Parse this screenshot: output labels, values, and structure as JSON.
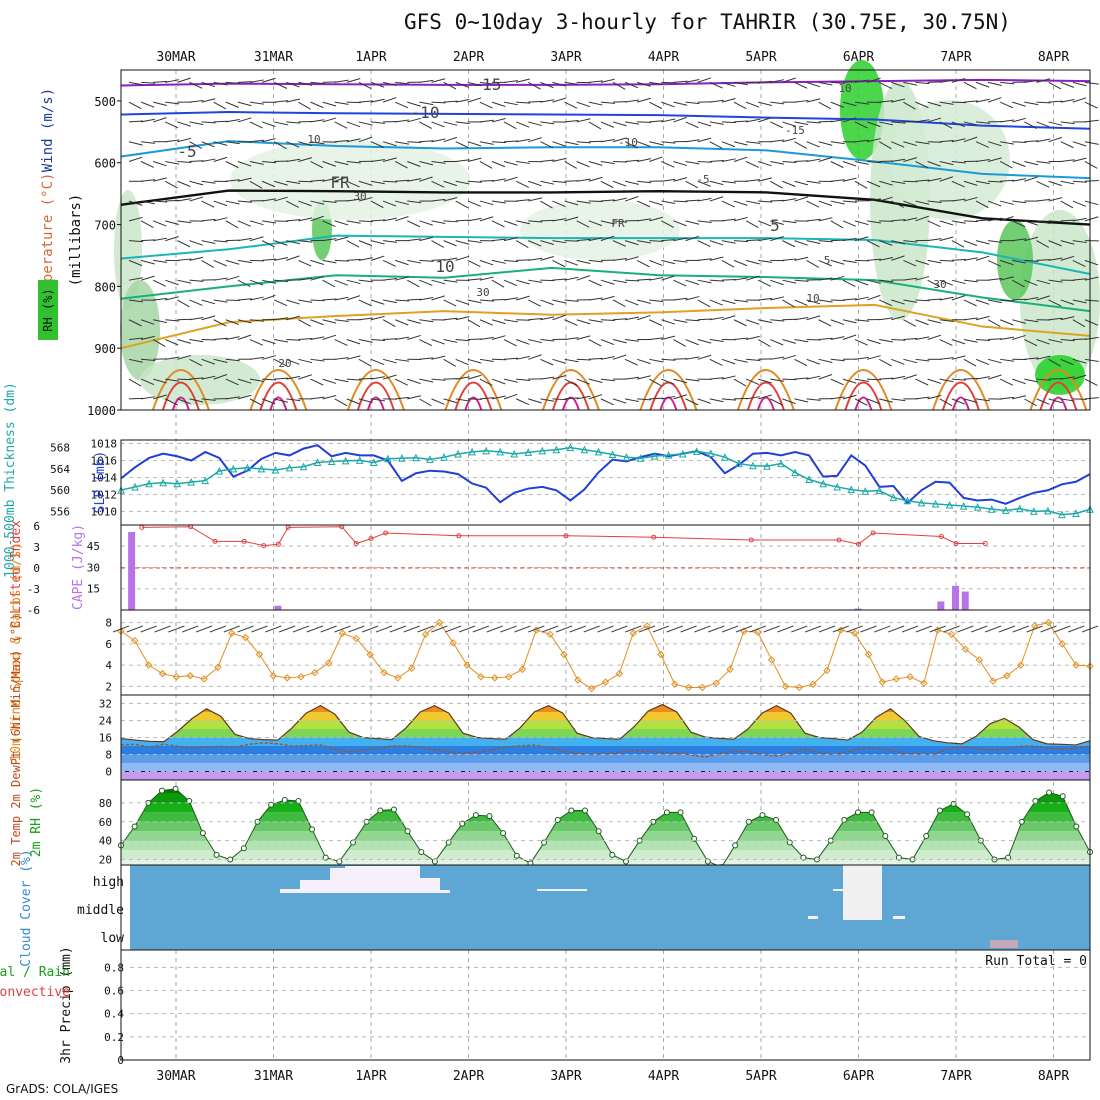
{
  "title": "GFS 0~10day 3-hourly for TAHRIR (30.75E, 30.75N)",
  "credit": "GrADS: COLA/IGES",
  "chart_data": {
    "type": "meteogram",
    "dates": [
      "30MAR",
      "31MAR",
      "1APR",
      "2APR",
      "3APR",
      "4APR",
      "5APR",
      "6APR",
      "7APR",
      "8APR"
    ],
    "panels": {
      "upper_air": {
        "ylabel_parts": [
          "RH (%)",
          "Temperature (°C)",
          "Wind (m/s)",
          "(millibars)"
        ],
        "pressure_levels": [
          500,
          600,
          700,
          800,
          900,
          1000
        ],
        "contour_labels": [
          "-15",
          "-10",
          "-5",
          "FR",
          "5",
          "10",
          "20",
          "10",
          "30",
          "30",
          "10",
          "-15",
          "-10",
          "-5",
          "FR",
          "5",
          "10",
          "30"
        ],
        "isotherms": [
          {
            "label": "-15",
            "color": "#8b1fc0",
            "level_mb": [
              475,
              472,
              473,
              474,
              474,
              473,
              470,
              468,
              466,
              468
            ]
          },
          {
            "label": "-10",
            "color": "#2244dd",
            "level_mb": [
              522,
              518,
              520,
              521,
              522,
              523,
              527,
              530,
              540,
              545
            ]
          },
          {
            "label": "-5",
            "color": "#1a9ad6",
            "level_mb": [
              590,
              565,
              573,
              577,
              575,
              575,
              580,
              598,
              618,
              625
            ]
          },
          {
            "label": "FR",
            "color": "#111111",
            "level_mb": [
              668,
              645,
              646,
              648,
              648,
              646,
              648,
              660,
              690,
              700
            ]
          },
          {
            "label": "5",
            "color": "#1bb5b5",
            "level_mb": [
              755,
              740,
              718,
              720,
              722,
              722,
              722,
              725,
              745,
              780
            ]
          },
          {
            "label": "10",
            "color": "#18b07a",
            "level_mb": [
              820,
              800,
              782,
              786,
              770,
              782,
              785,
              790,
              818,
              840
            ]
          },
          {
            "label": "15",
            "color": "#e0a020",
            "level_mb": [
              900,
              858,
              848,
              840,
              846,
              842,
              835,
              830,
              865,
              880
            ]
          }
        ]
      },
      "slp_thickness": {
        "ylabel_left": "1000-500mb Thickness (dm)",
        "ylabel_right": "SLP (mb)",
        "slp_ticks": [
          1018,
          1016,
          1014,
          1012,
          1010
        ],
        "thickness_ticks": [
          568,
          564,
          560,
          556
        ],
        "slp_mb": [
          1013.9,
          1015.2,
          1016.3,
          1016.8,
          1016.5,
          1016.0,
          1017.0,
          1016.3,
          1014.1,
          1014.8,
          1016.2,
          1016.9,
          1016.6,
          1017.4,
          1017.8,
          1016.5,
          1016.9,
          1016.6,
          1016.6,
          1016.0,
          1013.6,
          1014.5,
          1014.8,
          1014.7,
          1014.4,
          1013.3,
          1012.8,
          1011.1,
          1012.2,
          1012.7,
          1012.9,
          1012.5,
          1011.3,
          1012.6,
          1014.6,
          1016.1,
          1015.9,
          1016.4,
          1016.8,
          1016.5,
          1016.8,
          1017.1,
          1016.4,
          1014.5,
          1015.5,
          1016.8,
          1016.9,
          1016.6,
          1017.0,
          1016.6,
          1014.1,
          1014.2,
          1016.6,
          1015.4,
          1012.9,
          1013.0,
          1011.0,
          1012.5,
          1013.5,
          1013.4,
          1011.6,
          1011.3,
          1011.4,
          1010.9,
          1011.6,
          1012.2,
          1012.5,
          1013.2,
          1013.5,
          1014.4
        ],
        "thickness_dm": [
          560.0,
          560.6,
          561.2,
          561.4,
          561.2,
          561.5,
          561.8,
          563.6,
          564.0,
          564.2,
          564.0,
          563.8,
          564.2,
          564.4,
          565.2,
          565.4,
          565.5,
          565.6,
          565.2,
          565.9,
          566.0,
          566.1,
          565.8,
          566.2,
          566.8,
          567.2,
          567.4,
          567.2,
          566.8,
          567.1,
          567.4,
          567.6,
          568.0,
          567.6,
          567.2,
          566.7,
          566.2,
          566.0,
          566.4,
          566.6,
          566.8,
          567.3,
          566.9,
          566.2,
          565.0,
          564.6,
          564.5,
          565.0,
          563.3,
          562.0,
          561.2,
          560.6,
          560.1,
          559.8,
          559.9,
          558.6,
          558.0,
          557.6,
          557.4,
          557.2,
          557.0,
          556.8,
          556.4,
          556.2,
          556.5,
          556.0,
          556.1,
          555.4,
          555.6,
          556.4
        ]
      },
      "stability": {
        "ylabel_left": "Lifted Index",
        "ylabel_right": "CAPE (J/kg)",
        "li_ticks": [
          "-6",
          "-3",
          "0",
          "3",
          "6"
        ],
        "cape_ticks": [
          45,
          30,
          15
        ],
        "cape_jkg": [
          {
            "day": 0.05,
            "v": 55
          },
          {
            "day": 1.55,
            "v": 3
          },
          {
            "day": 7.5,
            "v": 1
          },
          {
            "day": 8.35,
            "v": 6
          },
          {
            "day": 8.5,
            "v": 17
          },
          {
            "day": 8.6,
            "v": 13
          }
        ],
        "lifted_index": [
          {
            "day": 0.15,
            "v": 5.8
          },
          {
            "day": 0.65,
            "v": 5.9
          },
          {
            "day": 0.9,
            "v": 3.8
          },
          {
            "day": 1.2,
            "v": 3.8
          },
          {
            "day": 1.4,
            "v": 3.2
          },
          {
            "day": 1.55,
            "v": 3.4
          },
          {
            "day": 1.65,
            "v": 5.8
          },
          {
            "day": 2.2,
            "v": 5.9
          },
          {
            "day": 2.35,
            "v": 3.5
          },
          {
            "day": 2.5,
            "v": 4.2
          },
          {
            "day": 2.65,
            "v": 5.0
          },
          {
            "day": 3.4,
            "v": 4.6
          },
          {
            "day": 4.5,
            "v": 4.6
          },
          {
            "day": 5.4,
            "v": 4.4
          },
          {
            "day": 6.4,
            "v": 4.0
          },
          {
            "day": 7.3,
            "v": 4.0
          },
          {
            "day": 7.5,
            "v": 3.4
          },
          {
            "day": 7.65,
            "v": 5.0
          },
          {
            "day": 8.35,
            "v": 4.5
          },
          {
            "day": 8.5,
            "v": 3.5
          },
          {
            "day": 8.8,
            "v": 3.5
          }
        ]
      },
      "wind10m": {
        "ylabel": "10m Wind Speed & Barbs (m/s)",
        "ticks": [
          8,
          6,
          4,
          2
        ],
        "speed_ms": [
          7.2,
          6.3,
          4.0,
          3.2,
          2.9,
          3.0,
          2.7,
          3.8,
          7.0,
          6.6,
          5.0,
          3.0,
          2.8,
          2.9,
          3.3,
          4.2,
          7.0,
          6.5,
          5.0,
          3.3,
          2.8,
          3.7,
          6.9,
          8.0,
          6.1,
          4.0,
          2.9,
          2.8,
          2.9,
          3.6,
          7.3,
          6.9,
          5.0,
          2.6,
          1.8,
          2.4,
          3.2,
          7.0,
          7.7,
          5.0,
          2.2,
          1.9,
          1.9,
          2.3,
          3.6,
          7.2,
          7.1,
          4.5,
          2.0,
          1.9,
          2.2,
          3.5,
          7.3,
          7.0,
          5.0,
          2.4,
          2.7,
          2.9,
          2.3,
          7.3,
          6.9,
          5.5,
          4.5,
          2.5,
          3.0,
          4.0,
          7.7,
          8.0,
          6.0,
          4.0,
          3.9
        ]
      },
      "temperature2m": {
        "ylabel": "2m Temp 2m DewPt (6hr Min/Max) (°C)",
        "ticks": [
          32,
          24,
          16,
          8,
          0
        ],
        "temp_c": [
          15.5,
          14.8,
          14.2,
          14.0,
          19.0,
          25.0,
          29.5,
          26.0,
          17.5,
          15.5,
          15.0,
          14.8,
          20.5,
          27.5,
          31.0,
          27.0,
          18.5,
          16.0,
          15.5,
          15.0,
          20.5,
          28.0,
          31.0,
          27.5,
          18.0,
          16.0,
          15.5,
          15.2,
          20.5,
          28.0,
          31.0,
          27.5,
          18.0,
          16.0,
          15.5,
          15.2,
          21.0,
          28.5,
          31.5,
          28.0,
          18.5,
          16.2,
          15.6,
          15.2,
          20.0,
          27.5,
          31.0,
          27.5,
          18.0,
          16.0,
          15.5,
          14.8,
          18.5,
          25.5,
          29.5,
          24.0,
          16.5,
          14.5,
          13.5,
          13.0,
          16.5,
          22.5,
          25.0,
          21.0,
          15.0,
          13.0,
          12.8,
          12.5,
          14.5
        ],
        "dewpoint_c": [
          12.5,
          12.8,
          11.5,
          12.8,
          11.8,
          11.0,
          11.5,
          11.8,
          11.5,
          12.8,
          13.5,
          13.0,
          12.0,
          12.2,
          12.5,
          10.5,
          9.2,
          10.0,
          11.0,
          12.0,
          12.0,
          11.5,
          10.2,
          9.2,
          8.8,
          9.0,
          10.2,
          11.5,
          12.0,
          12.5,
          11.2,
          9.8,
          8.5,
          8.0,
          8.2,
          9.0,
          10.0,
          9.5,
          9.0,
          8.8,
          7.8,
          6.8,
          8.5,
          9.5,
          9.5,
          8.0,
          7.2,
          8.8,
          10.5,
          9.0,
          7.8,
          9.5,
          11.0,
          11.0,
          10.0,
          8.5,
          8.2,
          8.0,
          10.5,
          11.5,
          11.0,
          10.0,
          10.5,
          11.8,
          12.0,
          11.0,
          10.5,
          11.0,
          12.0
        ]
      },
      "rh2m": {
        "ylabel": "2m RH (%)",
        "ticks": [
          80,
          60,
          40,
          20
        ],
        "rh_pct": [
          35,
          55,
          80,
          93,
          95,
          82,
          48,
          25,
          20,
          32,
          60,
          78,
          83,
          82,
          52,
          22,
          18,
          38,
          60,
          72,
          73,
          50,
          28,
          18,
          38,
          58,
          67,
          66,
          48,
          24,
          16,
          38,
          62,
          72,
          72,
          50,
          25,
          18,
          40,
          60,
          70,
          70,
          42,
          18,
          12,
          35,
          60,
          67,
          62,
          38,
          22,
          20,
          40,
          62,
          70,
          70,
          45,
          22,
          20,
          45,
          72,
          79,
          68,
          40,
          20,
          22,
          60,
          82,
          91,
          87,
          55,
          28
        ]
      },
      "cloud_cover": {
        "ylabel": "Cloud Cover (%)",
        "categories": [
          "high",
          "middle",
          "low"
        ],
        "background": "#5ea6d3"
      },
      "precip": {
        "ylabel_left": "Total / Rain",
        "ylabel_left2": "Convective",
        "ylabel": "3hr Precip (mm)",
        "ticks": [
          "0.8",
          "0.6",
          "0.4",
          "0.2",
          "0"
        ],
        "ylim": [
          0,
          0.95
        ],
        "run_total_label": "Run Total = 0",
        "values_mm": []
      }
    }
  }
}
